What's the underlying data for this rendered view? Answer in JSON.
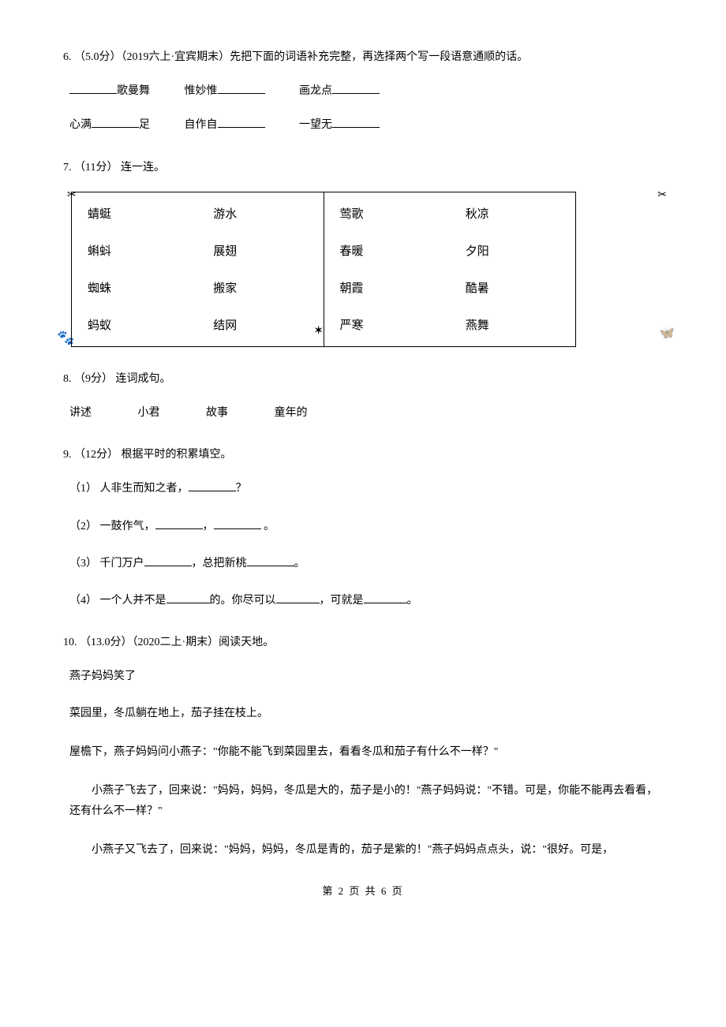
{
  "q6": {
    "header": "6. （5.0分）（2019六上·宜宾期末）先把下面的词语补充完整，再选择两个写一段语意通顺的话。",
    "row1": {
      "item1_suffix": "歌曼舞",
      "item2_prefix": "惟妙惟",
      "item3_prefix": "画龙点"
    },
    "row2": {
      "item1_prefix": "心满",
      "item1_suffix": "足",
      "item2_prefix": "自作自",
      "item3_prefix": "一望无"
    }
  },
  "q7": {
    "header": "7. （11分） 连一连。",
    "table": {
      "rows": [
        [
          "蜻蜓",
          "游水",
          "莺歌",
          "秋凉"
        ],
        [
          "蝌蚪",
          "展翅",
          "春暖",
          "夕阳"
        ],
        [
          "蜘蛛",
          "搬家",
          "朝霞",
          "酷暑"
        ],
        [
          "蚂蚁",
          "结网",
          "严寒",
          "燕舞"
        ]
      ]
    },
    "decorations": {
      "top_left": "✂",
      "top_right": "✂",
      "bottom_left": "🐾",
      "bottom_mid": "✶",
      "bottom_right": "🦋"
    }
  },
  "q8": {
    "header": "8. （9分） 连词成句。",
    "words": [
      "讲述",
      "小君",
      "故事",
      "童年的"
    ]
  },
  "q9": {
    "header": "9. （12分） 根据平时的积累填空。",
    "sub1_prefix": "（1） 人非生而知之者，",
    "sub1_suffix": "？",
    "sub2_prefix": "（2） 一鼓作气，",
    "sub2_mid": "，",
    "sub2_suffix": " 。",
    "sub3_prefix": "（3） 千门万户",
    "sub3_mid": "，总把新桃",
    "sub3_suffix": "。",
    "sub4_prefix": "（4） 一个人并不是",
    "sub4_mid1": "的。你尽可以",
    "sub4_mid2": "，可就是",
    "sub4_suffix": "。"
  },
  "q10": {
    "header": "10. （13.0分）（2020二上·期末）阅读天地。",
    "title": "燕子妈妈笑了",
    "para1": "菜园里，冬瓜躺在地上，茄子挂在枝上。",
    "para2": "屋檐下，燕子妈妈问小燕子：\"你能不能飞到菜园里去，看看冬瓜和茄子有什么不一样？\"",
    "para3": "小燕子飞去了，回来说：\"妈妈，妈妈，冬瓜是大的，茄子是小的！\"燕子妈妈说：\"不错。可是，你能不能再去看看，还有什么不一样？\"",
    "para4": "小燕子又飞去了，回来说：\"妈妈，妈妈，冬瓜是青的，茄子是紫的！\"燕子妈妈点点头，说：\"很好。可是，"
  },
  "footer": "第 2 页 共 6 页"
}
